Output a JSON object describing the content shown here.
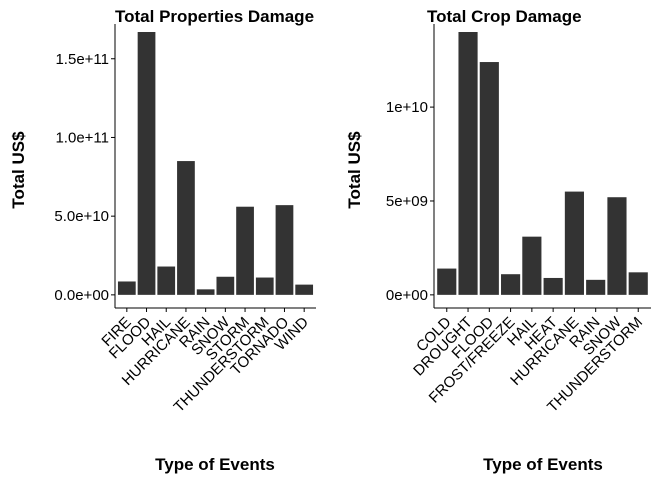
{
  "chart_data": [
    {
      "type": "bar",
      "title": "Total Properties Damage",
      "xlabel": "Type of Events",
      "ylabel": "Total US$",
      "categories": [
        "FIRE",
        "FLOOD",
        "HAIL",
        "HURRICANE",
        "RAIN",
        "SNOW",
        "STORM",
        "THUNDERSTORM",
        "TORNADO",
        "WIND"
      ],
      "values": [
        8500000000.0,
        167000000000.0,
        18000000000.0,
        85000000000.0,
        3500000000.0,
        11500000000.0,
        56000000000.0,
        11000000000.0,
        57000000000.0,
        6500000000.0
      ],
      "yticks": [
        0,
        50000000000.0,
        100000000000.0,
        150000000000.0
      ],
      "ytick_labels": [
        "0.0e+00",
        "5.0e+10",
        "1.0e+11",
        "1.5e+11"
      ],
      "ylim": [
        0,
        167000000000.0
      ],
      "bar_color": "#333333",
      "grid": false,
      "legend": "none"
    },
    {
      "type": "bar",
      "title": "Total Crop Damage",
      "xlabel": "Type of Events",
      "ylabel": "Total US$",
      "categories": [
        "COLD",
        "DROUGHT",
        "FLOOD",
        "FROST/FREEZE",
        "HAIL",
        "HEAT",
        "HURRICANE",
        "RAIN",
        "SNOW",
        "THUNDERSTORM"
      ],
      "values": [
        1400000000.0,
        14000000000.0,
        12400000000.0,
        1100000000.0,
        3100000000.0,
        900000000.0,
        5500000000.0,
        800000000.0,
        5200000000.0,
        1200000000.0
      ],
      "yticks": [
        0,
        5000000000.0,
        10000000000.0
      ],
      "ytick_labels": [
        "0e+00",
        "5e+09",
        "1e+10"
      ],
      "ylim": [
        0,
        14000000000.0
      ],
      "bar_color": "#333333",
      "grid": false,
      "legend": "none"
    }
  ]
}
